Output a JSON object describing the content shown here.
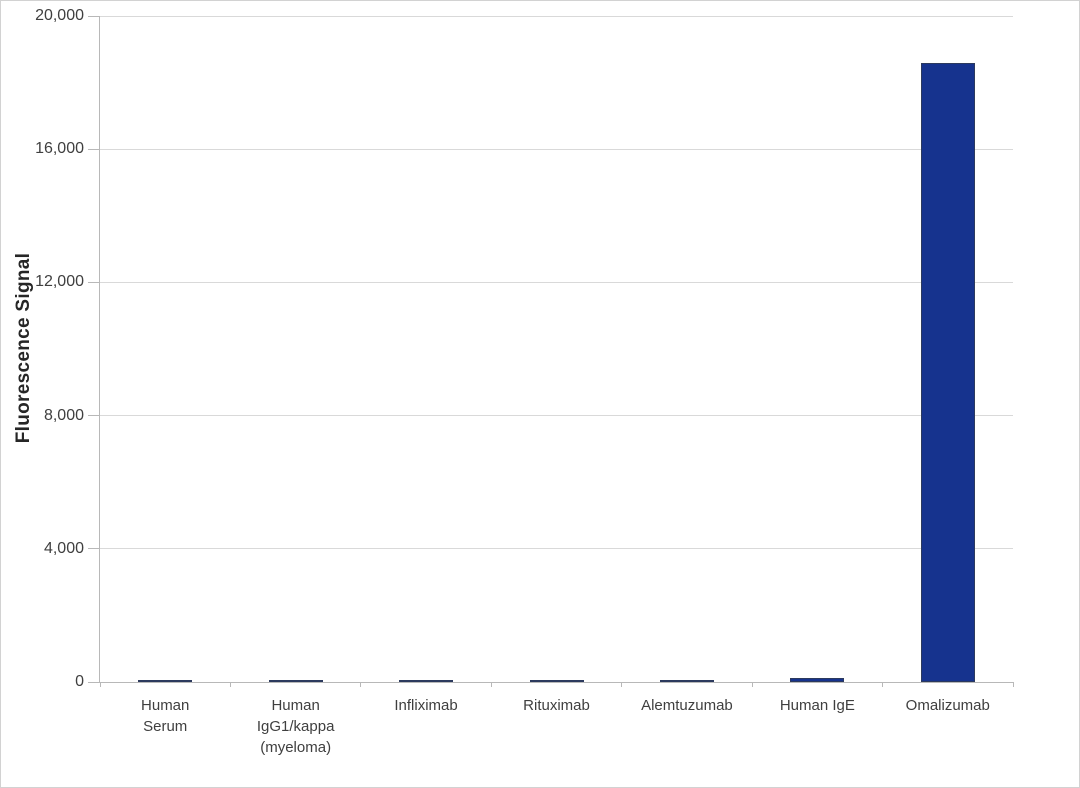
{
  "chart_data": {
    "type": "bar",
    "title": "",
    "xlabel": "",
    "ylabel": "Fluorescence Signal",
    "categories": [
      [
        "Human",
        "Serum"
      ],
      [
        "Human",
        "IgG1/kappa",
        "(myeloma)"
      ],
      [
        "Infliximab"
      ],
      [
        "Rituximab"
      ],
      [
        "Alemtuzumab"
      ],
      [
        "Human IgE"
      ],
      [
        "Omalizumab"
      ]
    ],
    "values": [
      50,
      50,
      50,
      50,
      50,
      120,
      18600
    ],
    "ylim": [
      0,
      20000
    ],
    "yticks": [
      0,
      4000,
      8000,
      12000,
      16000,
      20000
    ],
    "ytick_labels": [
      "0",
      "4,000",
      "8,000",
      "12,000",
      "16,000",
      "20,000"
    ],
    "grid": true,
    "legend": false,
    "colors": {
      "bar_fill": "#16338e",
      "bar_border": "#2c3a5e",
      "gridline": "#d9d9d9",
      "axis": "#b8b8b8",
      "text": "#3f3f3f"
    }
  }
}
